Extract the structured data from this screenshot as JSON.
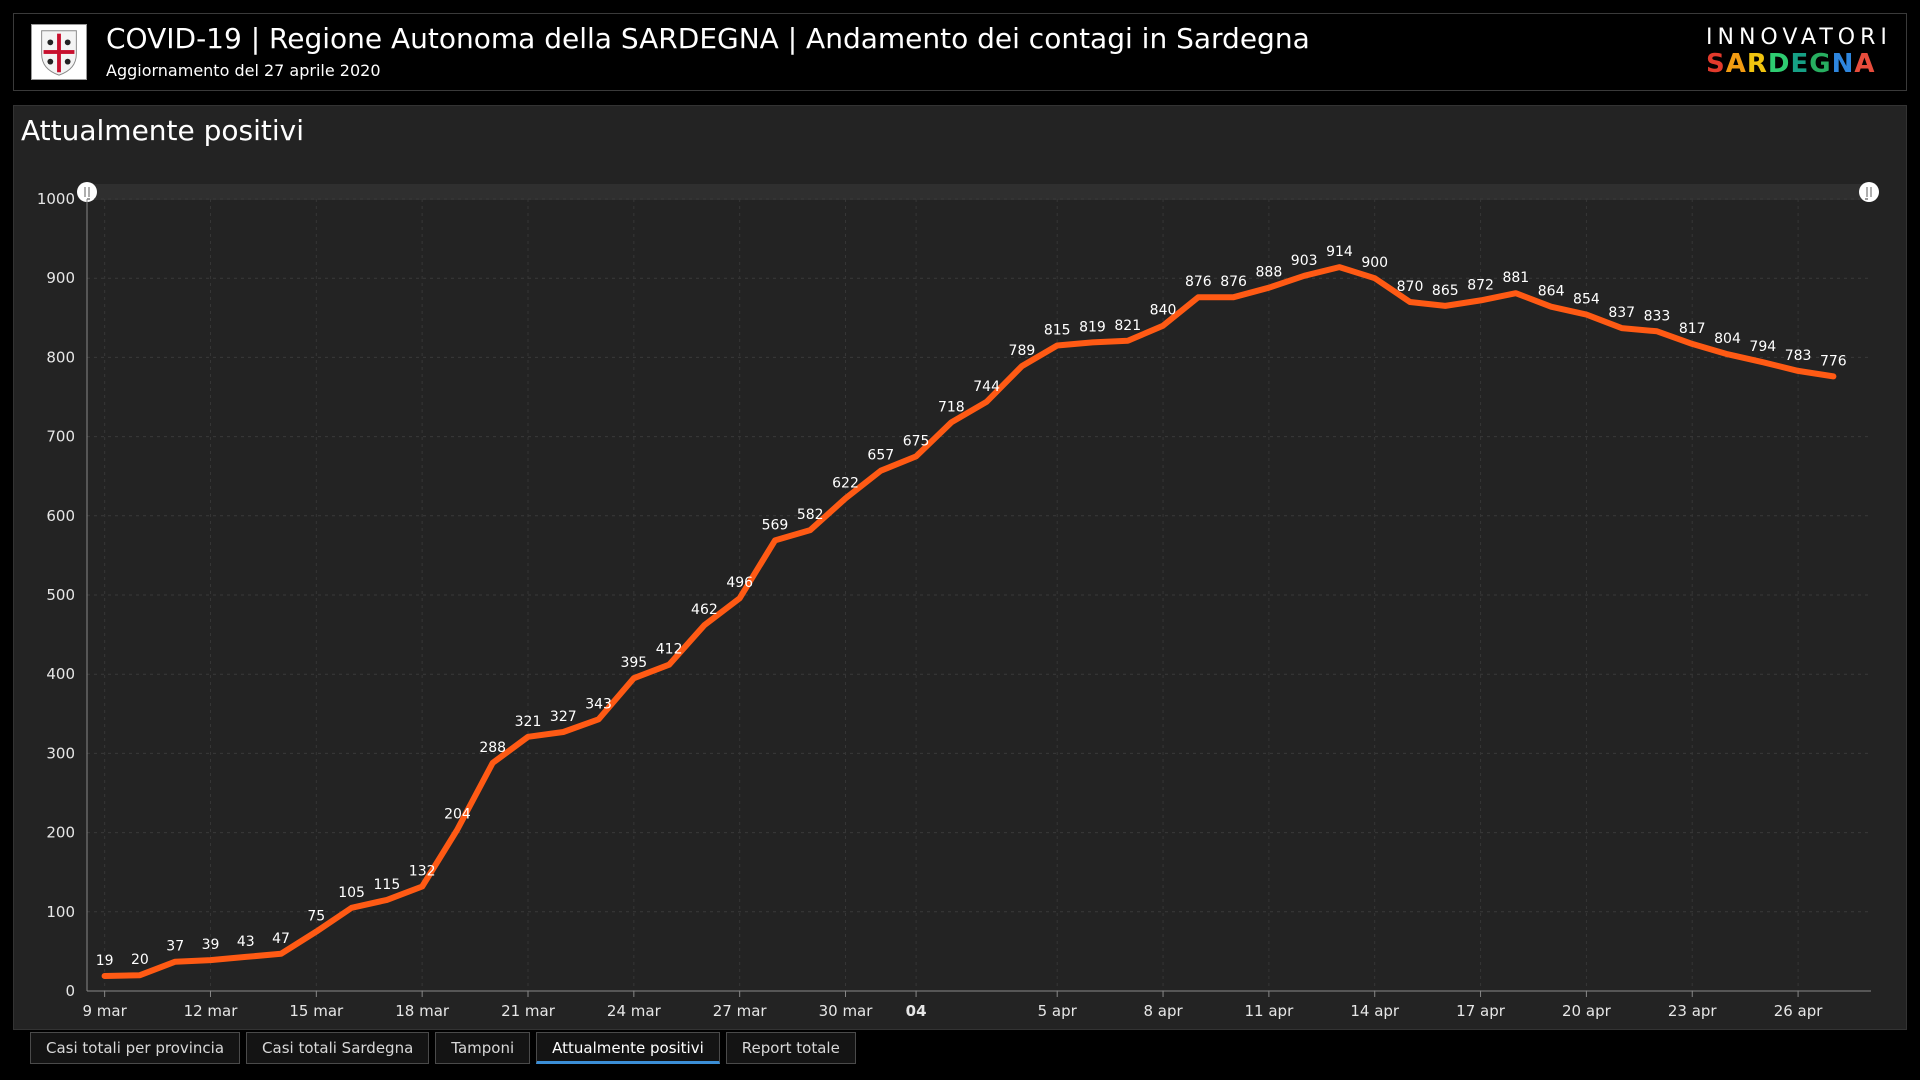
{
  "header": {
    "title": "COVID-19 | Regione Autonoma della SARDEGNA | Andamento dei contagi in Sardegna",
    "subtitle": "Aggiornamento del 27 aprile 2020",
    "crest_icon": "sardinia-four-moors-crest-icon",
    "brand_top": "INNOVATORI",
    "brand_bottom_letters": [
      "S",
      "A",
      "R",
      "D",
      "E",
      "G",
      "N",
      "A"
    ],
    "brand_colors": [
      "#e23a2c",
      "#f39c12",
      "#f1c40f",
      "#2ecc71",
      "#16a085",
      "#27ae60",
      "#2e86de",
      "#e74c3c"
    ]
  },
  "panel": {
    "title": "Attualmente positivi"
  },
  "chart_data": {
    "type": "line",
    "title": "Attualmente positivi",
    "xlabel": "",
    "ylabel": "",
    "ylim": [
      0,
      1000
    ],
    "yticks": [
      0,
      100,
      200,
      300,
      400,
      500,
      600,
      700,
      800,
      900,
      1000
    ],
    "x_start": "2020-03-09",
    "x": [
      "9 mar",
      "10 mar",
      "11 mar",
      "12 mar",
      "13 mar",
      "14 mar",
      "15 mar",
      "16 mar",
      "17 mar",
      "18 mar",
      "19 mar",
      "20 mar",
      "21 mar",
      "22 mar",
      "23 mar",
      "24 mar",
      "25 mar",
      "26 mar",
      "27 mar",
      "28 mar",
      "29 mar",
      "30 mar",
      "31 mar",
      "1 apr",
      "2 apr",
      "3 apr",
      "4 apr",
      "5 apr",
      "6 apr",
      "7 apr",
      "8 apr",
      "9 apr",
      "10 apr",
      "11 apr",
      "12 apr",
      "13 apr",
      "14 apr",
      "15 apr",
      "16 apr",
      "17 apr",
      "18 apr",
      "19 apr",
      "20 apr",
      "21 apr",
      "22 apr",
      "23 apr",
      "24 apr",
      "25 apr",
      "26 apr",
      "27 apr"
    ],
    "series": [
      {
        "name": "",
        "color": "#ff5a14",
        "values": [
          19,
          20,
          37,
          39,
          43,
          47,
          75,
          105,
          115,
          132,
          204,
          288,
          321,
          327,
          343,
          395,
          412,
          462,
          496,
          569,
          582,
          622,
          657,
          675,
          718,
          744,
          789,
          815,
          819,
          821,
          840,
          876,
          876,
          888,
          903,
          914,
          900,
          870,
          865,
          872,
          881,
          864,
          854,
          837,
          833,
          817,
          804,
          794,
          783,
          776
        ]
      }
    ],
    "x_tick_labels": [
      {
        "index": 0,
        "label": "9 mar",
        "bold": false
      },
      {
        "index": 3,
        "label": "12 mar",
        "bold": false
      },
      {
        "index": 6,
        "label": "15 mar",
        "bold": false
      },
      {
        "index": 9,
        "label": "18 mar",
        "bold": false
      },
      {
        "index": 12,
        "label": "21 mar",
        "bold": false
      },
      {
        "index": 15,
        "label": "24 mar",
        "bold": false
      },
      {
        "index": 18,
        "label": "27 mar",
        "bold": false
      },
      {
        "index": 21,
        "label": "30 mar",
        "bold": false
      },
      {
        "index": 23,
        "label": "04",
        "bold": true
      },
      {
        "index": 27,
        "label": "5 apr",
        "bold": false
      },
      {
        "index": 30,
        "label": "8 apr",
        "bold": false
      },
      {
        "index": 33,
        "label": "11 apr",
        "bold": false
      },
      {
        "index": 36,
        "label": "14 apr",
        "bold": false
      },
      {
        "index": 39,
        "label": "17 apr",
        "bold": false
      },
      {
        "index": 42,
        "label": "20 apr",
        "bold": false
      },
      {
        "index": 45,
        "label": "23 apr",
        "bold": false
      },
      {
        "index": 48,
        "label": "26 apr",
        "bold": false
      }
    ],
    "grid": true,
    "data_labels": true,
    "legend": "none"
  },
  "tabs": [
    {
      "label": "Casi totali per provincia",
      "active": false
    },
    {
      "label": "Casi totali Sardegna",
      "active": false
    },
    {
      "label": "Tamponi",
      "active": false
    },
    {
      "label": "Attualmente positivi",
      "active": true
    },
    {
      "label": "Report totale",
      "active": false
    }
  ]
}
